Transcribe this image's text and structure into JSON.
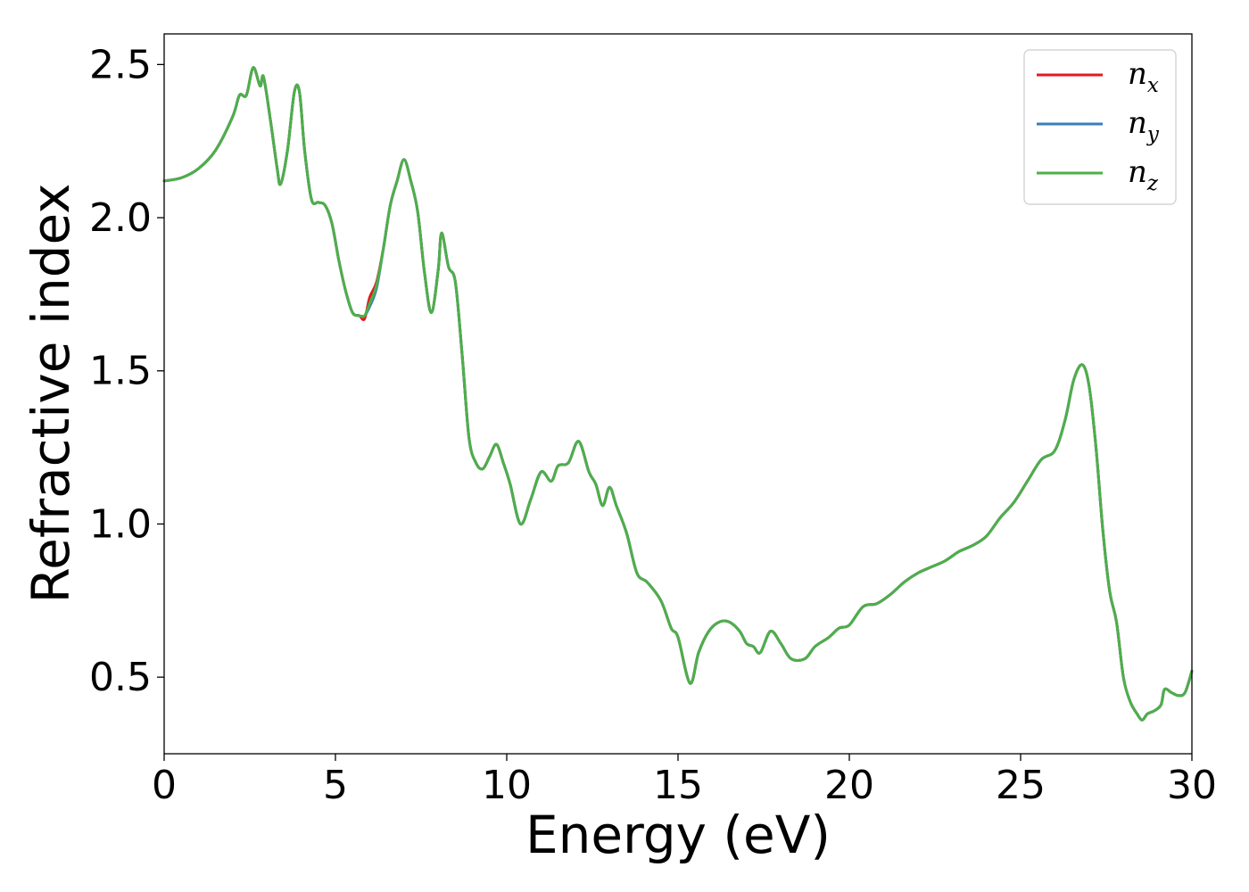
{
  "chart_data": {
    "type": "line",
    "xlabel": "Energy (eV)",
    "ylabel": "Refractive index",
    "xlim": [
      0,
      30
    ],
    "ylim": [
      0.25,
      2.6
    ],
    "xticks": [
      0,
      5,
      10,
      15,
      20,
      25,
      30
    ],
    "xtick_labels": [
      "0",
      "5",
      "10",
      "15",
      "20",
      "25",
      "30"
    ],
    "yticks": [
      0.5,
      1.0,
      1.5,
      2.0,
      2.5
    ],
    "ytick_labels": [
      "0.5",
      "1.0",
      "1.5",
      "2.0",
      "2.5"
    ],
    "grid": false,
    "legend_position": "top-right",
    "series": [
      {
        "name": "n_x",
        "label_base": "n",
        "label_sub": "x",
        "color": "#e41a1c",
        "x": [
          0,
          0.5,
          1.0,
          1.5,
          2.0,
          2.2,
          2.4,
          2.6,
          2.8,
          2.9,
          3.1,
          3.3,
          3.4,
          3.6,
          3.8,
          3.95,
          4.1,
          4.3,
          4.5,
          4.7,
          4.9,
          5.1,
          5.3,
          5.5,
          5.7,
          5.85,
          6.0,
          6.2,
          6.4,
          6.6,
          6.8,
          7.0,
          7.2,
          7.4,
          7.6,
          7.8,
          8.0,
          8.1,
          8.3,
          8.5,
          8.7,
          8.9,
          9.1,
          9.3,
          9.5,
          9.7,
          9.9,
          10.1,
          10.4,
          10.7,
          11.0,
          11.3,
          11.5,
          11.8,
          12.1,
          12.4,
          12.6,
          12.8,
          13.0,
          13.2,
          13.5,
          13.8,
          14.1,
          14.5,
          14.8,
          15.0,
          15.35,
          15.6,
          15.9,
          16.2,
          16.5,
          16.8,
          17.0,
          17.2,
          17.4,
          17.7,
          18.0,
          18.3,
          18.7,
          19.0,
          19.4,
          19.7,
          20.0,
          20.4,
          20.8,
          21.2,
          21.6,
          22.0,
          22.4,
          22.8,
          23.2,
          23.6,
          24.0,
          24.4,
          24.8,
          25.2,
          25.6,
          26.0,
          26.3,
          26.55,
          26.8,
          27.0,
          27.2,
          27.4,
          27.6,
          27.8,
          28.0,
          28.2,
          28.4,
          28.55,
          28.7,
          28.9,
          29.1,
          29.2,
          29.4,
          29.6,
          29.8,
          30.0
        ],
        "y": [
          2.12,
          2.13,
          2.16,
          2.22,
          2.33,
          2.4,
          2.4,
          2.49,
          2.43,
          2.46,
          2.32,
          2.16,
          2.11,
          2.22,
          2.41,
          2.41,
          2.22,
          2.06,
          2.05,
          2.04,
          1.98,
          1.86,
          1.76,
          1.69,
          1.68,
          1.67,
          1.74,
          1.79,
          1.9,
          2.04,
          2.12,
          2.19,
          2.12,
          2.02,
          1.82,
          1.69,
          1.83,
          1.95,
          1.84,
          1.79,
          1.55,
          1.28,
          1.2,
          1.18,
          1.22,
          1.26,
          1.2,
          1.13,
          1.0,
          1.08,
          1.17,
          1.14,
          1.19,
          1.2,
          1.27,
          1.17,
          1.13,
          1.06,
          1.12,
          1.06,
          0.97,
          0.84,
          0.81,
          0.75,
          0.66,
          0.63,
          0.48,
          0.58,
          0.65,
          0.68,
          0.68,
          0.65,
          0.61,
          0.6,
          0.58,
          0.65,
          0.61,
          0.56,
          0.56,
          0.6,
          0.63,
          0.66,
          0.67,
          0.73,
          0.74,
          0.77,
          0.81,
          0.84,
          0.86,
          0.88,
          0.91,
          0.93,
          0.96,
          1.02,
          1.07,
          1.14,
          1.21,
          1.24,
          1.34,
          1.47,
          1.52,
          1.45,
          1.25,
          0.98,
          0.78,
          0.68,
          0.5,
          0.42,
          0.38,
          0.36,
          0.38,
          0.39,
          0.41,
          0.46,
          0.45,
          0.44,
          0.45,
          0.52
        ]
      },
      {
        "name": "n_y",
        "label_base": "n",
        "label_sub": "y",
        "color": "#377eb8",
        "x": [
          0,
          0.5,
          1.0,
          1.5,
          2.0,
          2.2,
          2.4,
          2.6,
          2.8,
          2.9,
          3.1,
          3.3,
          3.4,
          3.6,
          3.8,
          3.95,
          4.1,
          4.3,
          4.5,
          4.7,
          4.9,
          5.1,
          5.3,
          5.5,
          5.7,
          5.85,
          6.0,
          6.2,
          6.4,
          6.6,
          6.8,
          7.0,
          7.2,
          7.4,
          7.6,
          7.8,
          8.0,
          8.1,
          8.3,
          8.5,
          8.7,
          8.9,
          9.1,
          9.3,
          9.5,
          9.7,
          9.9,
          10.1,
          10.4,
          10.7,
          11.0,
          11.3,
          11.5,
          11.8,
          12.1,
          12.4,
          12.6,
          12.8,
          13.0,
          13.2,
          13.5,
          13.8,
          14.1,
          14.5,
          14.8,
          15.0,
          15.35,
          15.6,
          15.9,
          16.2,
          16.5,
          16.8,
          17.0,
          17.2,
          17.4,
          17.7,
          18.0,
          18.3,
          18.7,
          19.0,
          19.4,
          19.7,
          20.0,
          20.4,
          20.8,
          21.2,
          21.6,
          22.0,
          22.4,
          22.8,
          23.2,
          23.6,
          24.0,
          24.4,
          24.8,
          25.2,
          25.6,
          26.0,
          26.3,
          26.55,
          26.8,
          27.0,
          27.2,
          27.4,
          27.6,
          27.8,
          28.0,
          28.2,
          28.4,
          28.55,
          28.7,
          28.9,
          29.1,
          29.2,
          29.4,
          29.6,
          29.8,
          30.0
        ],
        "y": [
          2.12,
          2.13,
          2.16,
          2.22,
          2.33,
          2.4,
          2.4,
          2.49,
          2.43,
          2.46,
          2.32,
          2.16,
          2.11,
          2.22,
          2.41,
          2.41,
          2.22,
          2.06,
          2.05,
          2.04,
          1.98,
          1.86,
          1.76,
          1.69,
          1.68,
          1.68,
          1.71,
          1.77,
          1.9,
          2.04,
          2.12,
          2.19,
          2.12,
          2.02,
          1.82,
          1.69,
          1.83,
          1.95,
          1.84,
          1.79,
          1.55,
          1.28,
          1.2,
          1.18,
          1.22,
          1.26,
          1.2,
          1.13,
          1.0,
          1.08,
          1.17,
          1.14,
          1.19,
          1.2,
          1.27,
          1.17,
          1.13,
          1.06,
          1.12,
          1.06,
          0.97,
          0.84,
          0.81,
          0.75,
          0.66,
          0.63,
          0.48,
          0.58,
          0.65,
          0.68,
          0.68,
          0.65,
          0.61,
          0.6,
          0.58,
          0.65,
          0.61,
          0.56,
          0.56,
          0.6,
          0.63,
          0.66,
          0.67,
          0.73,
          0.74,
          0.77,
          0.81,
          0.84,
          0.86,
          0.88,
          0.91,
          0.93,
          0.96,
          1.02,
          1.07,
          1.14,
          1.21,
          1.24,
          1.34,
          1.47,
          1.52,
          1.45,
          1.25,
          0.98,
          0.78,
          0.68,
          0.5,
          0.42,
          0.38,
          0.36,
          0.38,
          0.39,
          0.41,
          0.46,
          0.45,
          0.44,
          0.45,
          0.52
        ]
      },
      {
        "name": "n_z",
        "label_base": "n",
        "label_sub": "z",
        "color": "#4daf4a",
        "x": [
          0,
          0.5,
          1.0,
          1.5,
          2.0,
          2.2,
          2.4,
          2.6,
          2.8,
          2.9,
          3.1,
          3.3,
          3.4,
          3.6,
          3.8,
          3.95,
          4.1,
          4.3,
          4.5,
          4.7,
          4.9,
          5.1,
          5.3,
          5.5,
          5.7,
          5.85,
          6.0,
          6.2,
          6.4,
          6.6,
          6.8,
          7.0,
          7.2,
          7.4,
          7.6,
          7.8,
          8.0,
          8.1,
          8.3,
          8.5,
          8.7,
          8.9,
          9.1,
          9.3,
          9.5,
          9.7,
          9.9,
          10.1,
          10.4,
          10.7,
          11.0,
          11.3,
          11.5,
          11.8,
          12.1,
          12.4,
          12.6,
          12.8,
          13.0,
          13.2,
          13.5,
          13.8,
          14.1,
          14.5,
          14.8,
          15.0,
          15.35,
          15.6,
          15.9,
          16.2,
          16.5,
          16.8,
          17.0,
          17.2,
          17.4,
          17.7,
          18.0,
          18.3,
          18.7,
          19.0,
          19.4,
          19.7,
          20.0,
          20.4,
          20.8,
          21.2,
          21.6,
          22.0,
          22.4,
          22.8,
          23.2,
          23.6,
          24.0,
          24.4,
          24.8,
          25.2,
          25.6,
          26.0,
          26.3,
          26.55,
          26.8,
          27.0,
          27.2,
          27.4,
          27.6,
          27.8,
          28.0,
          28.2,
          28.4,
          28.55,
          28.7,
          28.9,
          29.1,
          29.2,
          29.4,
          29.6,
          29.8,
          30.0
        ],
        "y": [
          2.12,
          2.13,
          2.16,
          2.22,
          2.33,
          2.4,
          2.4,
          2.49,
          2.43,
          2.46,
          2.32,
          2.16,
          2.11,
          2.22,
          2.41,
          2.41,
          2.22,
          2.06,
          2.05,
          2.04,
          1.98,
          1.86,
          1.76,
          1.69,
          1.68,
          1.68,
          1.72,
          1.78,
          1.9,
          2.04,
          2.12,
          2.19,
          2.12,
          2.02,
          1.82,
          1.69,
          1.83,
          1.95,
          1.84,
          1.79,
          1.55,
          1.28,
          1.2,
          1.18,
          1.22,
          1.26,
          1.2,
          1.13,
          1.0,
          1.08,
          1.17,
          1.14,
          1.19,
          1.2,
          1.27,
          1.17,
          1.13,
          1.06,
          1.12,
          1.06,
          0.97,
          0.84,
          0.81,
          0.75,
          0.66,
          0.63,
          0.48,
          0.58,
          0.65,
          0.68,
          0.68,
          0.65,
          0.61,
          0.6,
          0.58,
          0.65,
          0.61,
          0.56,
          0.56,
          0.6,
          0.63,
          0.66,
          0.67,
          0.73,
          0.74,
          0.77,
          0.81,
          0.84,
          0.86,
          0.88,
          0.91,
          0.93,
          0.96,
          1.02,
          1.07,
          1.14,
          1.21,
          1.24,
          1.34,
          1.47,
          1.52,
          1.45,
          1.25,
          0.98,
          0.78,
          0.68,
          0.5,
          0.42,
          0.38,
          0.36,
          0.38,
          0.39,
          0.41,
          0.46,
          0.45,
          0.44,
          0.45,
          0.52
        ]
      }
    ]
  }
}
